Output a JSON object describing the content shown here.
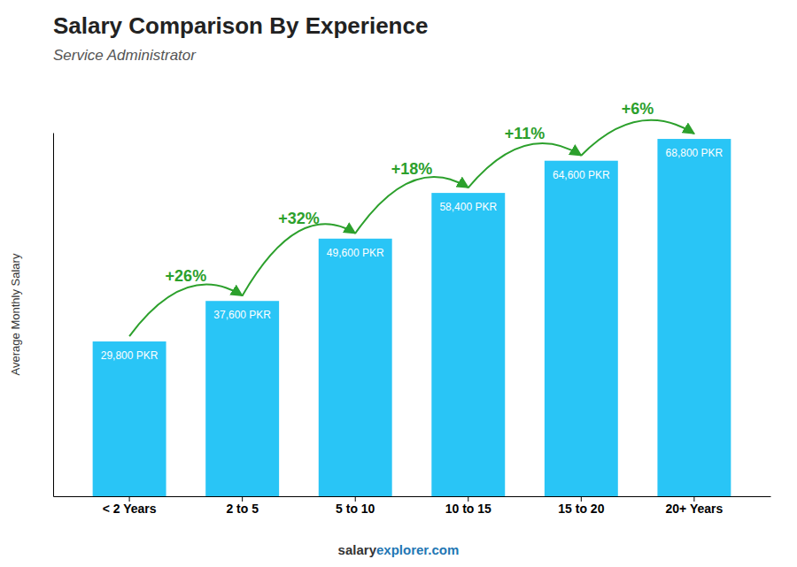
{
  "chart_data": {
    "type": "bar",
    "title": "Salary Comparison By Experience",
    "subtitle": "Service Administrator",
    "ylabel": "Average Monthly Salary",
    "categories": [
      "< 2 Years",
      "2 to 5",
      "5 to 10",
      "10 to 15",
      "15 to 20",
      "20+ Years"
    ],
    "values": [
      29800,
      37600,
      49600,
      58400,
      64600,
      68800
    ],
    "value_labels": [
      "29,800 PKR",
      "37,600 PKR",
      "49,600 PKR",
      "58,400 PKR",
      "64,600 PKR",
      "68,800 PKR"
    ],
    "data_labels": true,
    "annotations": [
      "+26%",
      "+32%",
      "+18%",
      "+11%",
      "+6%"
    ],
    "footer": [
      "salary",
      "explorer.com"
    ],
    "color": "#29c5f6",
    "ylim": [
      0,
      70000
    ],
    "grid": false,
    "tick_labels": "x"
  }
}
